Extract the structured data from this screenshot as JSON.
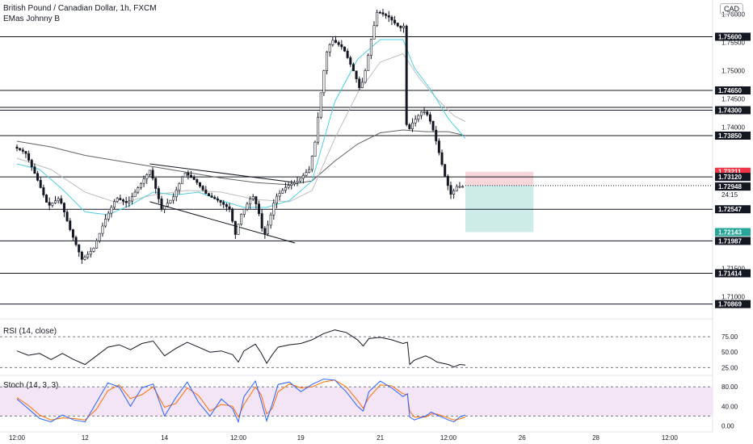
{
  "header": {
    "symbol": "British Pound / Canadian Dollar, 1h, FXCM",
    "indicator": "EMas Johnny B",
    "currency": "CAD"
  },
  "colors": {
    "candle": "#131722",
    "grid_line": "#131722",
    "ema_fast": "#4dd0e1",
    "ema_mid": "#bdbdbd",
    "ema_slow": "#616161",
    "rsi": "#131722",
    "stoch_k": "#2962ff",
    "stoch_d": "#ff6d00",
    "stoch_band": "#f3e5f5",
    "stop_zone": "#f8d7da",
    "target_zone": "#cdece8",
    "current_tag": "#131722",
    "red_tag": "#f23645",
    "green_tag": "#26a69a"
  },
  "chart_data": {
    "type": "candlestick",
    "main": {
      "ylim": [
        1.7065,
        1.7625
      ],
      "y_ticks": [
        "1.76000",
        "1.75500",
        "1.75000",
        "1.74500",
        "1.74000",
        "1.71500",
        "1.71000"
      ],
      "y_tick_values": [
        1.76,
        1.755,
        1.75,
        1.745,
        1.74,
        1.715,
        1.71
      ],
      "x_ticks": [
        "12:00",
        "12",
        "14",
        "12:00",
        "19",
        "21",
        "12:00",
        "26",
        "28",
        "12:00"
      ],
      "x_tick_t": [
        0.0,
        6.0,
        13.0,
        19.5,
        25.0,
        32.0,
        38.0,
        44.5,
        51.0,
        57.5
      ],
      "price_tags": [
        {
          "label": "1.75600",
          "value": 1.756,
          "style": "dark"
        },
        {
          "label": "1.74650",
          "value": 1.7465,
          "style": "dark"
        },
        {
          "label": "1.74300",
          "value": 1.743,
          "style": "dark"
        },
        {
          "label": "1.73850",
          "value": 1.7385,
          "style": "dark"
        },
        {
          "label": "1.73211",
          "value": 1.73211,
          "style": "red"
        },
        {
          "label": "1.73120",
          "value": 1.7312,
          "style": "dark"
        },
        {
          "label": "1.72966",
          "value": 1.72966,
          "style": "gray"
        },
        {
          "label": "1.72948",
          "value": 1.72948,
          "style": "dark"
        },
        {
          "label": "1.72547",
          "value": 1.72547,
          "style": "dark"
        },
        {
          "label": "1.72143",
          "value": 1.72143,
          "style": "green"
        },
        {
          "label": "1.71987",
          "value": 1.71987,
          "style": "dark"
        },
        {
          "label": "1.71414",
          "value": 1.71414,
          "style": "dark"
        },
        {
          "label": "1.70869",
          "value": 1.70869,
          "style": "dark"
        }
      ],
      "countdown": "24:15",
      "horizontal_levels": [
        1.756,
        1.7465,
        1.7435,
        1.743,
        1.7385,
        1.7312,
        1.72547,
        1.71987,
        1.71414,
        1.70869
      ],
      "position": {
        "entry": 1.72966,
        "stop": 1.73211,
        "target": 1.72143,
        "t_start": 39.5,
        "t_end": 45.5
      },
      "candle_path": [
        [
          0.0,
          1.7365
        ],
        [
          1.0,
          1.7355
        ],
        [
          2.0,
          1.731
        ],
        [
          3.0,
          1.726
        ],
        [
          4.0,
          1.7275
        ],
        [
          5.0,
          1.7215
        ],
        [
          6.0,
          1.7165
        ],
        [
          7.0,
          1.7185
        ],
        [
          8.0,
          1.7235
        ],
        [
          9.0,
          1.7275
        ],
        [
          10.0,
          1.7265
        ],
        [
          11.0,
          1.7295
        ],
        [
          12.0,
          1.7325
        ],
        [
          13.0,
          1.7255
        ],
        [
          14.0,
          1.7275
        ],
        [
          15.0,
          1.732
        ],
        [
          16.0,
          1.7305
        ],
        [
          17.0,
          1.728
        ],
        [
          18.0,
          1.727
        ],
        [
          19.0,
          1.7255
        ],
        [
          19.5,
          1.721
        ],
        [
          20.0,
          1.7245
        ],
        [
          21.0,
          1.728
        ],
        [
          21.5,
          1.7255
        ],
        [
          22.0,
          1.7205
        ],
        [
          22.5,
          1.7235
        ],
        [
          23.0,
          1.7275
        ],
        [
          24.0,
          1.7295
        ],
        [
          25.0,
          1.7305
        ],
        [
          26.0,
          1.7325
        ],
        [
          26.5,
          1.737
        ],
        [
          27.0,
          1.7455
        ],
        [
          27.5,
          1.753
        ],
        [
          28.0,
          1.7555
        ],
        [
          29.0,
          1.754
        ],
        [
          30.0,
          1.7495
        ],
        [
          30.5,
          1.7465
        ],
        [
          31.0,
          1.7505
        ],
        [
          31.5,
          1.756
        ],
        [
          32.0,
          1.7605
        ],
        [
          33.0,
          1.7595
        ],
        [
          34.0,
          1.7575
        ],
        [
          34.4,
          1.758
        ],
        [
          34.6,
          1.7385
        ],
        [
          35.0,
          1.7405
        ],
        [
          36.0,
          1.743
        ],
        [
          36.5,
          1.742
        ],
        [
          37.0,
          1.739
        ],
        [
          37.5,
          1.735
        ],
        [
          38.0,
          1.731
        ],
        [
          38.5,
          1.728
        ],
        [
          39.0,
          1.7295
        ],
        [
          39.5,
          1.7295
        ]
      ],
      "ema_fast_path": [
        [
          0.0,
          1.7335
        ],
        [
          2.0,
          1.7325
        ],
        [
          4.0,
          1.729
        ],
        [
          6.0,
          1.725
        ],
        [
          8.0,
          1.7245
        ],
        [
          10.0,
          1.7262
        ],
        [
          12.0,
          1.7285
        ],
        [
          14.0,
          1.728
        ],
        [
          16.0,
          1.7285
        ],
        [
          18.0,
          1.727
        ],
        [
          20.0,
          1.7258
        ],
        [
          22.0,
          1.7258
        ],
        [
          24.0,
          1.727
        ],
        [
          26.0,
          1.7305
        ],
        [
          28.0,
          1.7445
        ],
        [
          30.0,
          1.752
        ],
        [
          32.0,
          1.7555
        ],
        [
          34.0,
          1.7555
        ],
        [
          35.0,
          1.7505
        ],
        [
          36.5,
          1.7465
        ],
        [
          38.0,
          1.7415
        ],
        [
          39.5,
          1.738
        ]
      ],
      "ema_mid_path": [
        [
          0.0,
          1.7345
        ],
        [
          3.0,
          1.7325
        ],
        [
          6.0,
          1.7285
        ],
        [
          9.0,
          1.7265
        ],
        [
          12.0,
          1.728
        ],
        [
          15.0,
          1.7288
        ],
        [
          18.0,
          1.7285
        ],
        [
          21.0,
          1.7272
        ],
        [
          24.0,
          1.7268
        ],
        [
          26.0,
          1.7288
        ],
        [
          28.0,
          1.738
        ],
        [
          30.0,
          1.746
        ],
        [
          32.0,
          1.7515
        ],
        [
          34.0,
          1.753
        ],
        [
          35.5,
          1.7485
        ],
        [
          37.0,
          1.745
        ],
        [
          38.5,
          1.742
        ],
        [
          39.5,
          1.741
        ]
      ],
      "ema_slow_path": [
        [
          0.0,
          1.7375
        ],
        [
          3.0,
          1.7365
        ],
        [
          6.0,
          1.735
        ],
        [
          9.0,
          1.734
        ],
        [
          12.0,
          1.733
        ],
        [
          15.0,
          1.732
        ],
        [
          18.0,
          1.731
        ],
        [
          21.0,
          1.7302
        ],
        [
          24.0,
          1.7298
        ],
        [
          26.0,
          1.7305
        ],
        [
          28.0,
          1.734
        ],
        [
          30.0,
          1.737
        ],
        [
          32.0,
          1.739
        ],
        [
          34.0,
          1.7395
        ],
        [
          36.0,
          1.7392
        ],
        [
          38.0,
          1.7392
        ],
        [
          39.5,
          1.7385
        ]
      ]
    },
    "rsi": {
      "label": "RSI (14, close)",
      "y_ticks": [
        "75.00",
        "50.00",
        "25.00"
      ],
      "y_tick_values": [
        75,
        50,
        25
      ],
      "ylim": [
        15,
        100
      ],
      "path": [
        [
          0.0,
          52
        ],
        [
          1.0,
          45
        ],
        [
          2.0,
          48
        ],
        [
          3.0,
          38
        ],
        [
          4.0,
          48
        ],
        [
          5.0,
          38
        ],
        [
          6.0,
          30
        ],
        [
          7.0,
          44
        ],
        [
          8.0,
          58
        ],
        [
          9.0,
          62
        ],
        [
          10.0,
          54
        ],
        [
          11.0,
          64
        ],
        [
          12.0,
          68
        ],
        [
          13.0,
          44
        ],
        [
          14.0,
          56
        ],
        [
          15.0,
          66
        ],
        [
          16.0,
          58
        ],
        [
          17.0,
          50
        ],
        [
          18.0,
          52
        ],
        [
          19.0,
          46
        ],
        [
          19.5,
          34
        ],
        [
          20.0,
          52
        ],
        [
          21.0,
          63
        ],
        [
          21.5,
          49
        ],
        [
          22.0,
          32
        ],
        [
          22.5,
          46
        ],
        [
          23.0,
          58
        ],
        [
          24.0,
          62
        ],
        [
          25.0,
          64
        ],
        [
          26.0,
          70
        ],
        [
          27.0,
          80
        ],
        [
          28.0,
          86
        ],
        [
          29.0,
          82
        ],
        [
          30.0,
          70
        ],
        [
          30.5,
          60
        ],
        [
          31.0,
          72
        ],
        [
          32.0,
          74
        ],
        [
          33.0,
          70
        ],
        [
          34.0,
          64
        ],
        [
          34.4,
          66
        ],
        [
          34.6,
          30
        ],
        [
          35.0,
          37
        ],
        [
          36.0,
          44
        ],
        [
          36.5,
          40
        ],
        [
          37.0,
          34
        ],
        [
          38.0,
          30
        ],
        [
          38.5,
          26
        ],
        [
          39.0,
          30
        ],
        [
          39.5,
          29
        ]
      ]
    },
    "stoch": {
      "label": "Stoch (14, 3, 3)",
      "y_ticks": [
        "80.00",
        "40.00",
        "0.00"
      ],
      "y_tick_values": [
        80,
        40,
        0
      ],
      "ylim": [
        -6,
        102
      ],
      "k_path": [
        [
          0.0,
          55
        ],
        [
          1.0,
          35
        ],
        [
          2.0,
          15
        ],
        [
          3.0,
          8
        ],
        [
          4.0,
          22
        ],
        [
          5.0,
          12
        ],
        [
          6.0,
          8
        ],
        [
          7.0,
          48
        ],
        [
          8.0,
          88
        ],
        [
          9.0,
          80
        ],
        [
          10.0,
          40
        ],
        [
          11.0,
          78
        ],
        [
          12.0,
          86
        ],
        [
          13.0,
          20
        ],
        [
          14.0,
          58
        ],
        [
          15.0,
          90
        ],
        [
          16.0,
          48
        ],
        [
          17.0,
          20
        ],
        [
          18.0,
          55
        ],
        [
          19.0,
          35
        ],
        [
          19.5,
          8
        ],
        [
          20.0,
          60
        ],
        [
          21.0,
          92
        ],
        [
          21.5,
          52
        ],
        [
          22.0,
          10
        ],
        [
          22.5,
          45
        ],
        [
          23.0,
          85
        ],
        [
          24.0,
          90
        ],
        [
          25.0,
          70
        ],
        [
          26.0,
          85
        ],
        [
          27.0,
          96
        ],
        [
          28.0,
          94
        ],
        [
          29.0,
          70
        ],
        [
          30.0,
          40
        ],
        [
          30.5,
          30
        ],
        [
          31.0,
          70
        ],
        [
          32.0,
          92
        ],
        [
          33.0,
          78
        ],
        [
          34.0,
          60
        ],
        [
          34.4,
          66
        ],
        [
          34.6,
          18
        ],
        [
          35.0,
          12
        ],
        [
          36.0,
          20
        ],
        [
          36.5,
          28
        ],
        [
          37.0,
          22
        ],
        [
          38.0,
          12
        ],
        [
          38.5,
          8
        ],
        [
          39.0,
          18
        ],
        [
          39.5,
          22
        ]
      ],
      "d_path": [
        [
          0.0,
          58
        ],
        [
          1.0,
          42
        ],
        [
          2.0,
          22
        ],
        [
          3.0,
          12
        ],
        [
          4.0,
          16
        ],
        [
          5.0,
          15
        ],
        [
          6.0,
          12
        ],
        [
          7.0,
          34
        ],
        [
          8.0,
          72
        ],
        [
          9.0,
          84
        ],
        [
          10.0,
          56
        ],
        [
          11.0,
          64
        ],
        [
          12.0,
          80
        ],
        [
          13.0,
          38
        ],
        [
          14.0,
          46
        ],
        [
          15.0,
          78
        ],
        [
          16.0,
          62
        ],
        [
          17.0,
          30
        ],
        [
          18.0,
          44
        ],
        [
          19.0,
          40
        ],
        [
          19.5,
          18
        ],
        [
          20.0,
          44
        ],
        [
          21.0,
          80
        ],
        [
          21.5,
          64
        ],
        [
          22.0,
          24
        ],
        [
          22.5,
          36
        ],
        [
          23.0,
          70
        ],
        [
          24.0,
          86
        ],
        [
          25.0,
          78
        ],
        [
          26.0,
          80
        ],
        [
          27.0,
          90
        ],
        [
          28.0,
          94
        ],
        [
          29.0,
          80
        ],
        [
          30.0,
          52
        ],
        [
          30.5,
          36
        ],
        [
          31.0,
          58
        ],
        [
          32.0,
          84
        ],
        [
          33.0,
          82
        ],
        [
          34.0,
          66
        ],
        [
          34.4,
          64
        ],
        [
          34.6,
          30
        ],
        [
          35.0,
          18
        ],
        [
          36.0,
          18
        ],
        [
          36.5,
          24
        ],
        [
          37.0,
          24
        ],
        [
          38.0,
          16
        ],
        [
          38.5,
          12
        ],
        [
          39.0,
          14
        ],
        [
          39.5,
          18
        ]
      ]
    }
  }
}
